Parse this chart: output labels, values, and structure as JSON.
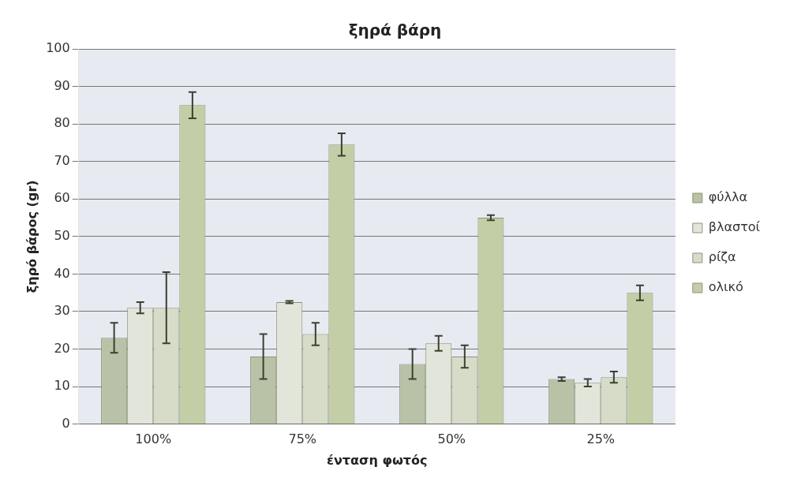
{
  "chart_data": {
    "type": "bar",
    "title": "ξηρά βάρη",
    "xlabel": "ένταση φωτός",
    "ylabel": "ξηρό βάρος (gr)",
    "categories": [
      "100%",
      "75%",
      "50%",
      "25%"
    ],
    "series": [
      {
        "name": "φύλλα",
        "color": "#b9c2a6",
        "values": [
          23,
          18,
          16,
          12
        ],
        "errors": [
          4,
          6,
          4,
          0.5
        ]
      },
      {
        "name": "βλαστοί",
        "color": "#e2e6da",
        "values": [
          31,
          32.5,
          21.5,
          11
        ],
        "errors": [
          1.5,
          0.3,
          2,
          1
        ]
      },
      {
        "name": "ρίζα",
        "color": "#d6dcc8",
        "values": [
          31,
          24,
          18,
          12.5
        ],
        "errors": [
          9.5,
          3,
          3,
          1.5
        ]
      },
      {
        "name": "ολικό",
        "color": "#c3cea6",
        "values": [
          85,
          74.5,
          55,
          35
        ],
        "errors": [
          3.5,
          3,
          0.7,
          2
        ]
      }
    ],
    "ylim": [
      0,
      100
    ],
    "yticks": [
      0,
      10,
      20,
      30,
      40,
      50,
      60,
      70,
      80,
      90,
      100
    ],
    "grid": "y",
    "legend": "right"
  }
}
